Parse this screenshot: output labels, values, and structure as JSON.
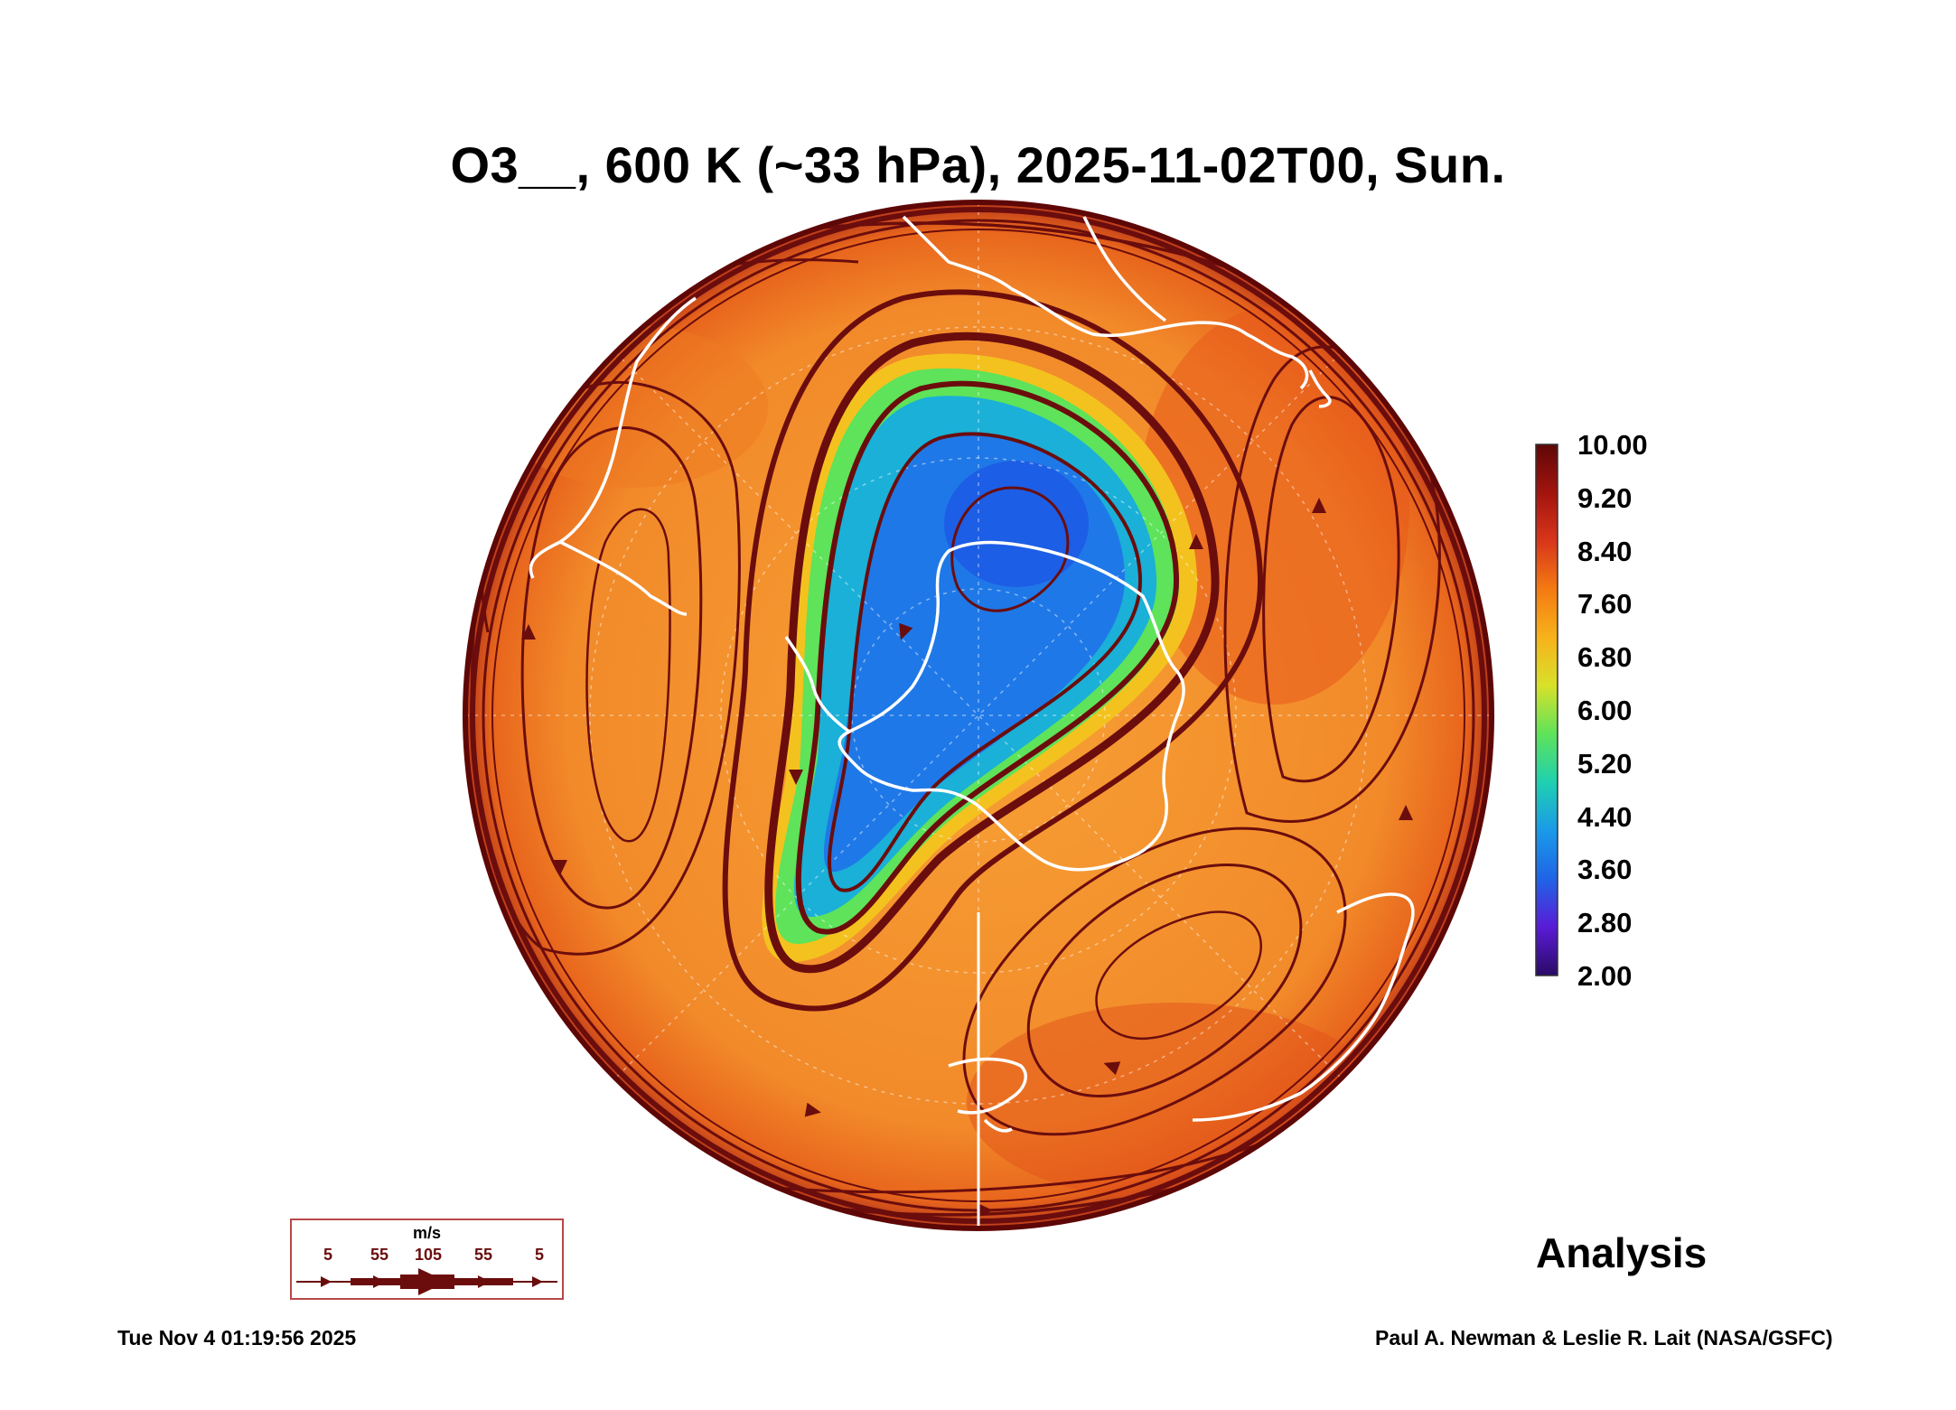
{
  "title": "O3__, 600 K (~33 hPa), 2025-11-02T00, Sun.",
  "colorbar": {
    "labels": [
      "10.00",
      "9.20",
      "8.40",
      "7.60",
      "6.80",
      "6.00",
      "5.20",
      "4.40",
      "3.60",
      "2.80",
      "2.00"
    ],
    "min": 2.0,
    "max": 10.0,
    "colors": [
      "#2a0a66",
      "#5a1bd6",
      "#1f64e6",
      "#1a9ae8",
      "#1fd0b0",
      "#5ee35a",
      "#d8e12a",
      "#f7b21a",
      "#f47a12",
      "#d8361a",
      "#a3140e",
      "#5e0707"
    ]
  },
  "wind_legend": {
    "unit": "m/s",
    "ticks": [
      "5",
      "55",
      "105",
      "55",
      "5"
    ],
    "color": "#6b0d0d"
  },
  "label": "Analysis",
  "timestamp": "Tue Nov  4 01:19:56 2025",
  "credit": "Paul A. Newman & Leslie R. Lait (NASA/GSFC)",
  "field": {
    "background_color": "#f28a2a",
    "vortex_edge_color": "#5ee35a",
    "vortex_inner_color": "#1aa8dd",
    "vortex_core_color": "#1f6ae6",
    "streamline_color": "#6b0d0d",
    "coastline_color": "#ffffff"
  }
}
